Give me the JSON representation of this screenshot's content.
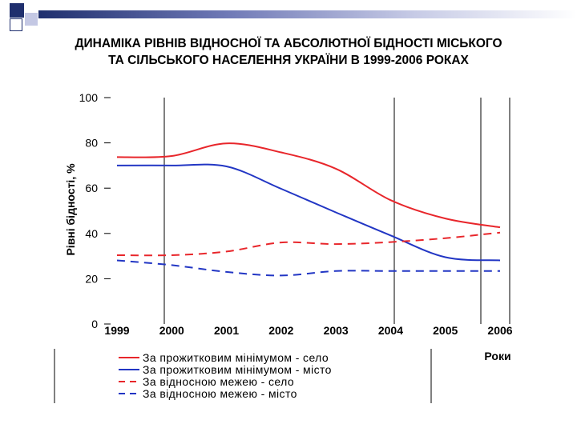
{
  "title_lines": [
    "ДИНАМІКА РІВНІВ ВІДНОСНОЇ ТА АБСОЛЮТНОЇ БІДНОСТІ МІСЬКОГО",
    "ТА СІЛЬСЬКОГО НАСЕЛЕННЯ УКРАЇНИ В 1999-2006 РОКАХ"
  ],
  "colors": {
    "red": "#e8262b",
    "blue": "#2236c4",
    "deco_dark": "#1f2f6e",
    "deco_light": "#c4c8e4"
  },
  "chart_data": {
    "type": "line",
    "title": "ДИНАМІКА РІВНІВ ВІДНОСНОЇ ТА АБСОЛЮТНОЇ БІДНОСТІ МІСЬКОГО ТА СІЛЬСЬКОГО НАСЕЛЕННЯ УКРАЇНИ В 1999-2006 РОКАХ",
    "xlabel": "Роки",
    "ylabel": "Рівні бідності, %",
    "x": [
      "1999",
      "2000",
      "2001",
      "2002",
      "2003",
      "2004",
      "2005",
      "2006"
    ],
    "xticks": [
      "1999",
      "2000",
      "2001",
      "2002",
      "2003",
      "2004",
      "2005",
      "2006"
    ],
    "yticks": [
      "0",
      "20",
      "40",
      "60",
      "80",
      "100"
    ],
    "ylim": [
      0,
      100
    ],
    "grid": "vertical lines at years; horizontal tick marks only",
    "legend_position": "bottom",
    "series": [
      {
        "name": "За прожитковим мінімумом - село",
        "color": "#e8262b",
        "style": "solid",
        "values": [
          73.7,
          74.2,
          79.8,
          75.8,
          68.6,
          54.7,
          46.6,
          42.7
        ]
      },
      {
        "name": "За прожитковим мінімумом - місто",
        "color": "#2236c4",
        "style": "solid",
        "values": [
          70.0,
          70.0,
          69.6,
          59.7,
          49.3,
          39.1,
          29.5,
          28.1
        ]
      },
      {
        "name": "За відносною межею - село",
        "color": "#e8262b",
        "style": "dashed",
        "values": [
          30.4,
          30.4,
          32.0,
          36.0,
          35.3,
          36.2,
          37.9,
          40.4
        ]
      },
      {
        "name": "За відносною межею - місто",
        "color": "#2236c4",
        "style": "dashed",
        "values": [
          28.1,
          26.0,
          23.0,
          21.4,
          23.4,
          23.4,
          23.4,
          23.4
        ]
      }
    ]
  }
}
